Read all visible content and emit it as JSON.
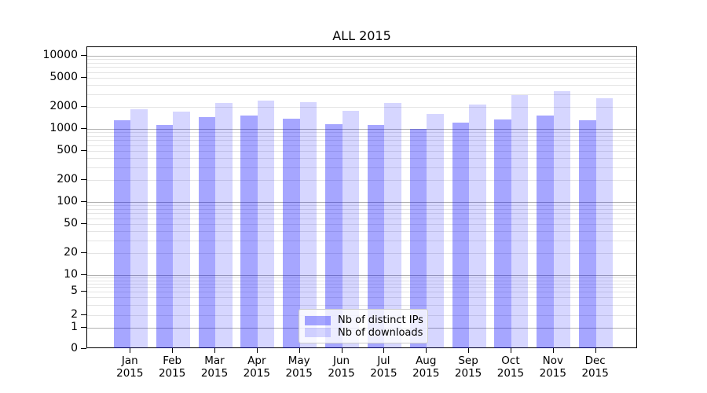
{
  "title": "ALL 2015",
  "chart_data": {
    "type": "bar",
    "title": "ALL 2015",
    "categories": [
      "Jan",
      "Feb",
      "Mar",
      "Apr",
      "May",
      "Jun",
      "Jul",
      "Aug",
      "Sep",
      "Oct",
      "Nov",
      "Dec"
    ],
    "category_year": "2015",
    "series": [
      {
        "name": "Nb of distinct IPs",
        "color": "rgba(0,0,255,0.35)",
        "values": [
          1310,
          1130,
          1440,
          1520,
          1370,
          1170,
          1140,
          1000,
          1220,
          1350,
          1520,
          1310
        ]
      },
      {
        "name": "Nb of downloads",
        "color": "rgba(0,0,255,0.16)",
        "values": [
          1880,
          1720,
          2260,
          2440,
          2320,
          1770,
          2250,
          1590,
          2160,
          2880,
          3310,
          2610
        ]
      }
    ],
    "yscale": "symlog",
    "ytick_labels": [
      10000,
      5000,
      2000,
      1000,
      500,
      200,
      100,
      50,
      20,
      10,
      5,
      2,
      1,
      0
    ],
    "ylim": [
      0,
      13000
    ],
    "grid": true,
    "legend_position": "lower center",
    "colors": {
      "grid_major": "#b0b0b0",
      "grid_minor": "#e4e4e4",
      "spine": "#000000",
      "text": "#000000",
      "legend_border": "#cccccc",
      "legend_bg": "rgba(255,255,255,0.8)"
    }
  }
}
